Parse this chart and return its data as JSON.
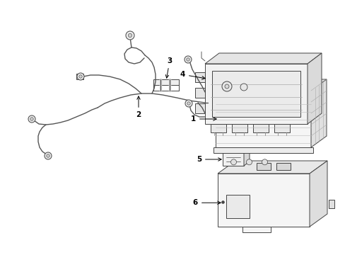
{
  "background_color": "#ffffff",
  "line_color": "#333333",
  "label_color": "#000000",
  "fig_width": 4.89,
  "fig_height": 3.6,
  "dpi": 100,
  "cable_color": "#555555",
  "part_line_color": "#444444"
}
